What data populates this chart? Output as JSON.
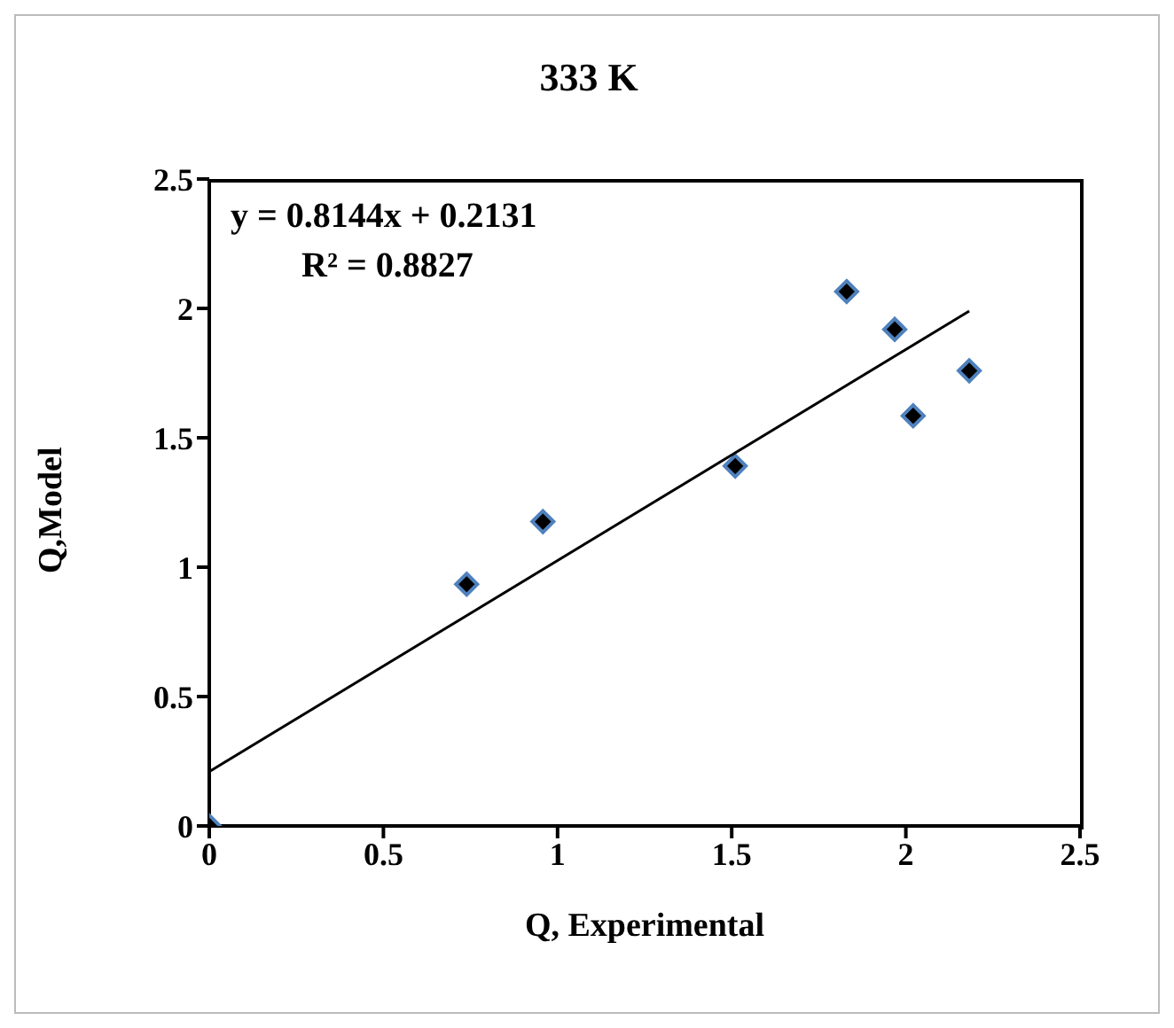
{
  "chart_data": {
    "type": "scatter",
    "title": "333 K",
    "xlabel": "Q, Experimental",
    "ylabel": "Q,Model",
    "annotations": [
      "y = 0.8144x + 0.2131",
      "R² = 0.8827"
    ],
    "x": [
      0,
      0.739,
      0.958,
      1.51,
      1.83,
      1.968,
      2.021,
      2.182
    ],
    "series": [
      {
        "color": "#000000",
        "marker": "diamond",
        "values": [
          0,
          0.934,
          1.176,
          1.391,
          2.065,
          1.919,
          1.585,
          1.759
        ]
      },
      {
        "type": "line",
        "color": "#000000",
        "marker": "none",
        "x": [
          0,
          2.182
        ],
        "values": [
          0.21,
          1.99
        ]
      }
    ],
    "xlim": [
      0,
      2.5
    ],
    "ylim": [
      0,
      2.5
    ],
    "xticks": [
      0,
      0.5,
      1,
      1.5,
      2,
      2.5
    ],
    "yticks": [
      0,
      0.5,
      1,
      1.5,
      2,
      2.5
    ],
    "grid": false
  }
}
